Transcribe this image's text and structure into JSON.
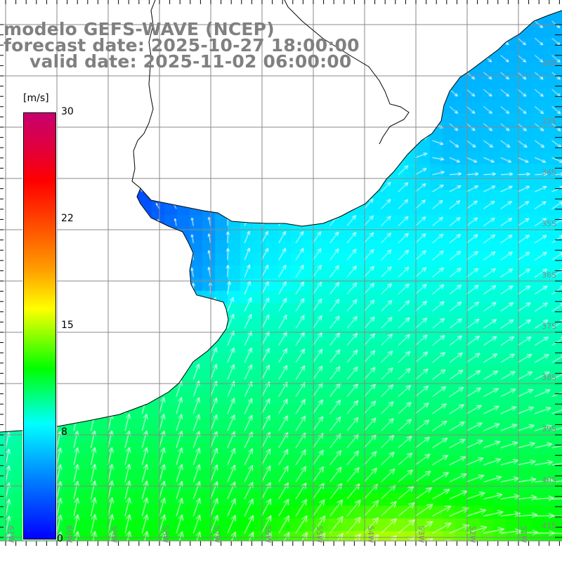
{
  "title": {
    "model": "modelo GEFS-WAVE (NCEP)",
    "forecast": "forecast date: 2025-10-27 18:00:00",
    "valid": "valid date: 2025-11-02 06:00:00"
  },
  "colorbar": {
    "unit": "[m/s]",
    "labels": [
      "30",
      "22",
      "15",
      "8",
      "0"
    ],
    "range": [
      0,
      30
    ]
  },
  "axes": {
    "lat_labels": [
      "32S",
      "33S",
      "34S",
      "35S",
      "36S",
      "37S",
      "38S",
      "39S",
      "40S",
      "41S"
    ],
    "lon_labels": [
      "61W",
      "60W",
      "59W",
      "58W",
      "57W",
      "56W",
      "55W",
      "54W",
      "53W",
      "52W",
      "51W"
    ]
  },
  "colors": {
    "land": "#ffffff",
    "coast": "#000000",
    "grid": "#888888",
    "title": "#808080",
    "arrows": "#ffffff"
  }
}
